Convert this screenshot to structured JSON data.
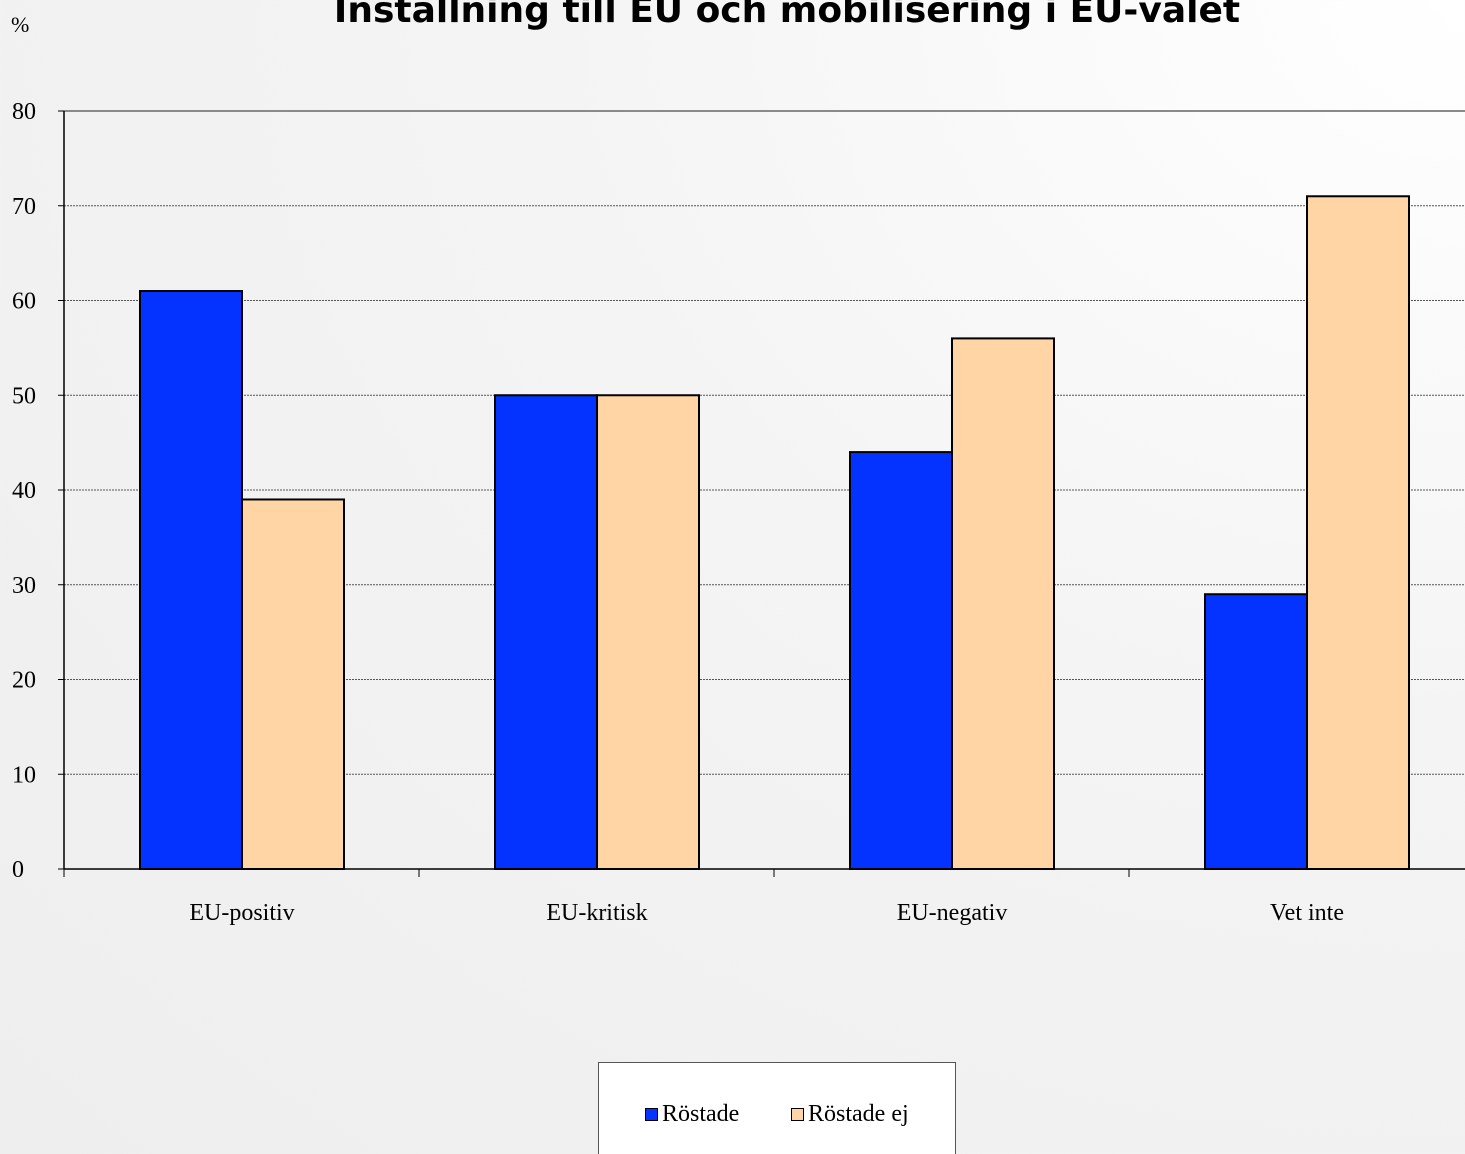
{
  "chart_data": {
    "type": "bar",
    "title": "Inställning till EU och mobilisering i EU-valet",
    "ylabel": "%",
    "xlabel": "",
    "ylim": [
      0,
      80
    ],
    "yticks": [
      0,
      10,
      20,
      30,
      40,
      50,
      60,
      70,
      80
    ],
    "grid": true,
    "legend_position": "bottom",
    "categories": [
      "EU-positiv",
      "EU-kritisk",
      "EU-negativ",
      "Vet inte"
    ],
    "series": [
      {
        "name": "Röstade",
        "color": "#0433ff",
        "values": [
          61,
          50,
          44,
          29
        ]
      },
      {
        "name": "Röstade ej",
        "color": "#ffd5a5",
        "values": [
          39,
          50,
          56,
          71
        ]
      }
    ]
  }
}
